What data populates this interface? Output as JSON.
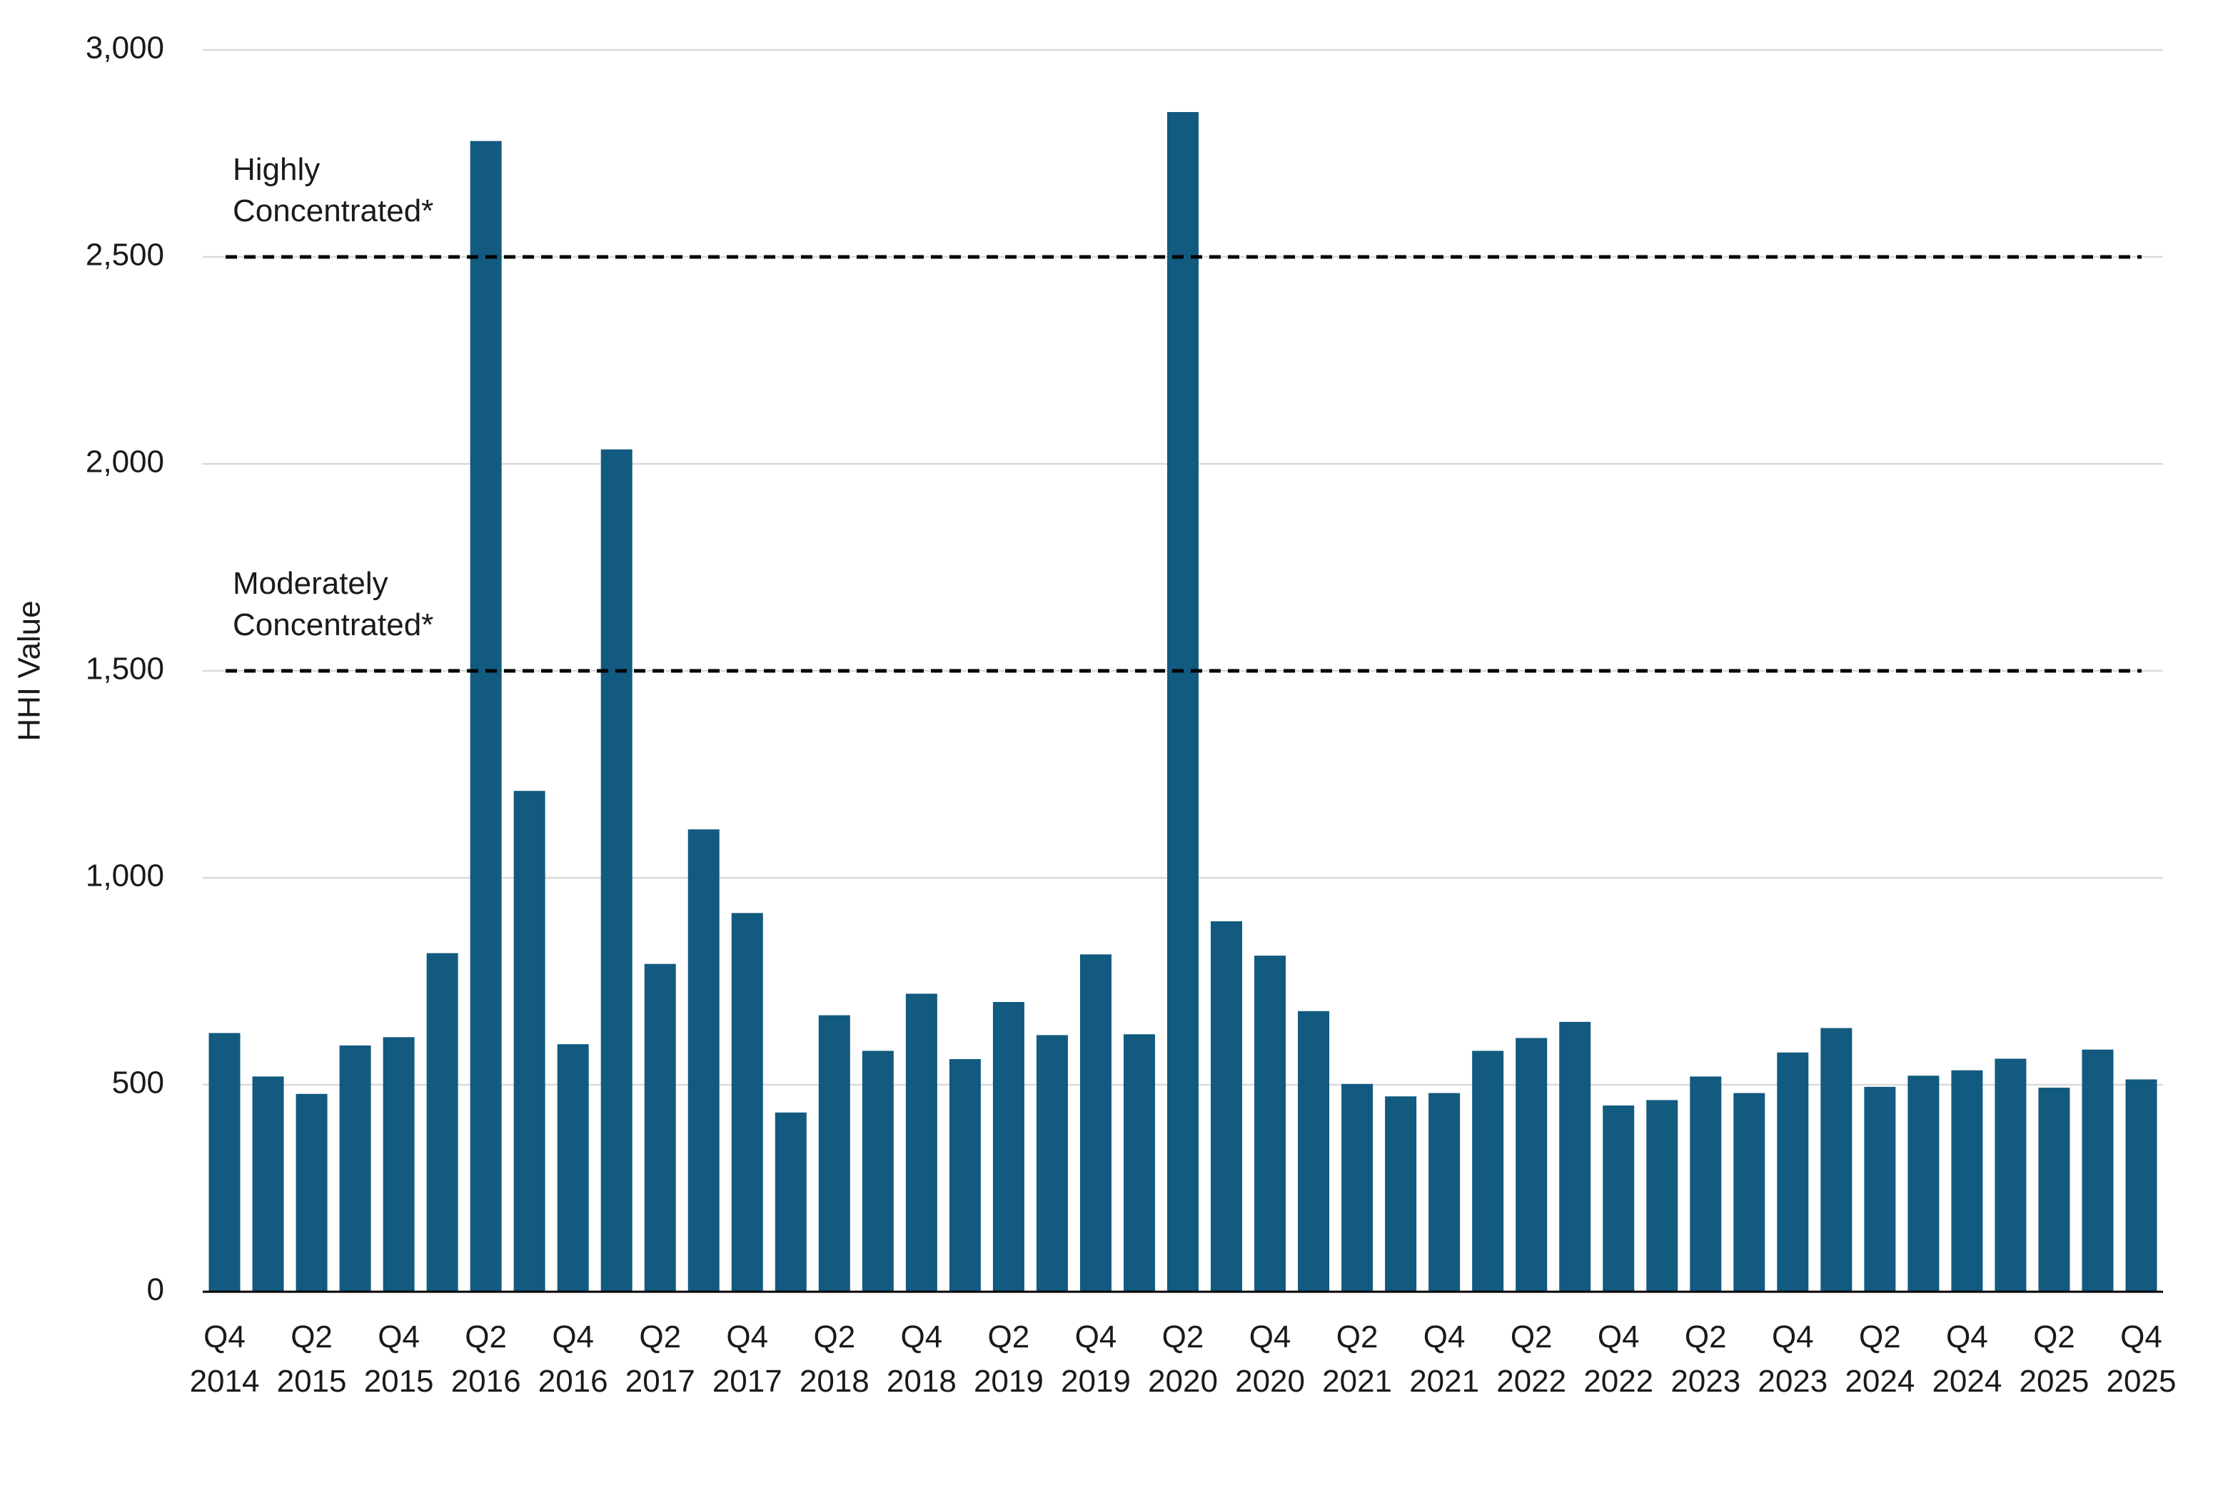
{
  "chart_data": {
    "type": "bar",
    "y_label": "HHI Value",
    "categories": [
      "Q4 2014",
      null,
      "Q2 2015",
      null,
      "Q4 2015",
      null,
      "Q2 2016",
      null,
      "Q4 2016",
      null,
      "Q2 2017",
      null,
      "Q4 2017",
      null,
      "Q2 2018",
      null,
      "Q4 2018",
      null,
      "Q2 2019",
      null,
      "Q4 2019",
      null,
      "Q2 2020",
      null,
      "Q4 2020",
      null,
      "Q2 2021",
      null,
      "Q4 2021",
      null,
      "Q2 2022",
      null,
      "Q4 2022",
      null,
      "Q2 2023",
      null,
      "Q4 2023",
      null,
      "Q2 2024",
      null,
      "Q4 2024",
      null,
      "Q2 2025",
      null,
      "Q4 2025"
    ],
    "values": [
      625,
      520,
      478,
      595,
      615,
      818,
      2780,
      1210,
      598,
      2035,
      792,
      1117,
      915,
      433,
      668,
      582,
      720,
      562,
      700,
      620,
      815,
      622,
      2850,
      895,
      812,
      678,
      502,
      472,
      480,
      582,
      613,
      652,
      450,
      463,
      520,
      480,
      578,
      637,
      495,
      522,
      535,
      563,
      493,
      585,
      513
    ],
    "color": "#125a7f",
    "ylim": [
      0,
      3000
    ],
    "yticks": [
      0,
      500,
      {
        "value": 1000,
        "label": "1,000"
      },
      {
        "value": 1500,
        "label": "1,500"
      },
      {
        "value": 2000,
        "label": "2,000"
      },
      {
        "value": 2500,
        "label": "2,500"
      },
      {
        "value": 3000,
        "label": "3,000"
      }
    ],
    "grid": true,
    "reference_lines": [
      {
        "value": 2500,
        "label": "Highly Concentrated*"
      },
      {
        "value": 1500,
        "label": "Moderately Concentrated*"
      }
    ]
  }
}
